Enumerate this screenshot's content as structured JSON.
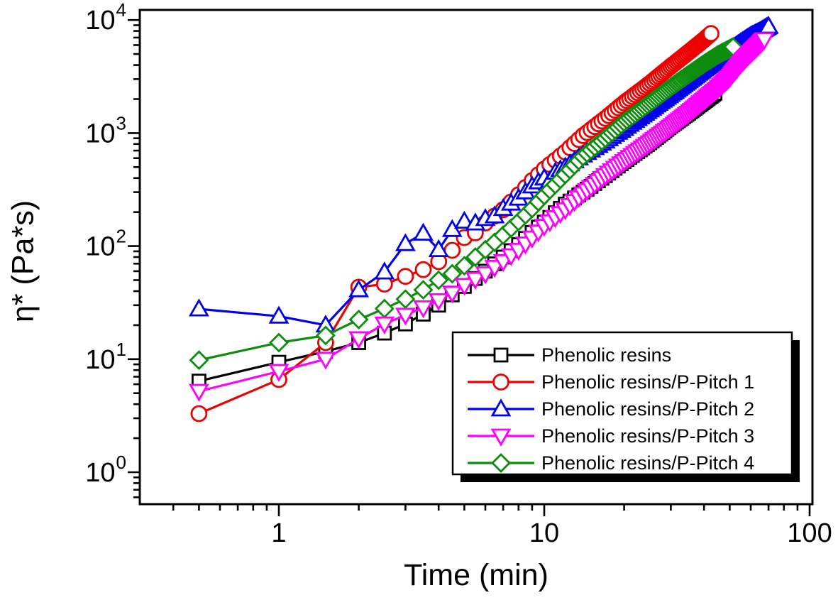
{
  "chart_data": {
    "type": "line",
    "title": "",
    "xlabel": "Time (min)",
    "ylabel": "η* (Pa*s)",
    "x_scale": "log",
    "y_scale": "log",
    "xlim": [
      0.3,
      103
    ],
    "ylim": [
      0.52,
      12300
    ],
    "grid": false,
    "x_ticks": [
      {
        "value": 1,
        "label": "1"
      },
      {
        "value": 10,
        "label": "10"
      },
      {
        "value": 100,
        "label": "100"
      }
    ],
    "y_ticks": [
      {
        "value": 1,
        "base": "10",
        "exp": "0"
      },
      {
        "value": 10,
        "base": "10",
        "exp": "1"
      },
      {
        "value": 100,
        "base": "10",
        "exp": "2"
      },
      {
        "value": 1000,
        "base": "10",
        "exp": "3"
      },
      {
        "value": 10000,
        "base": "10",
        "exp": "4"
      }
    ],
    "legend": {
      "position": "lower-right",
      "border": true,
      "shadow": true
    },
    "sample_dt": 0.5,
    "series": [
      {
        "name": "Phenolic resins",
        "color": "#000000",
        "marker": "square",
        "z": 0,
        "anchors": [
          [
            0.5,
            6.4
          ],
          [
            1,
            9.4
          ],
          [
            1.5,
            11.7
          ],
          [
            2,
            14
          ],
          [
            2.5,
            17
          ],
          [
            3,
            20.5
          ],
          [
            3.5,
            25
          ],
          [
            4,
            30
          ],
          [
            4.5,
            37
          ],
          [
            5,
            44
          ],
          [
            6,
            60
          ],
          [
            7,
            80
          ],
          [
            8,
            103
          ],
          [
            9,
            132
          ],
          [
            10,
            163
          ],
          [
            12,
            235
          ],
          [
            14,
            300
          ],
          [
            17,
            420
          ],
          [
            20,
            560
          ],
          [
            25,
            820
          ],
          [
            30,
            1150
          ],
          [
            35,
            1500
          ],
          [
            40,
            1900
          ],
          [
            44,
            2250
          ]
        ]
      },
      {
        "name": "Phenolic resins/P-Pitch 1",
        "color": "#ed0000",
        "marker": "circle",
        "z": 1,
        "anchors": [
          [
            0.5,
            3.3
          ],
          [
            1,
            6.6
          ],
          [
            1.5,
            14
          ],
          [
            1.9,
            43
          ],
          [
            2.4,
            44.5
          ],
          [
            3,
            54
          ],
          [
            3.5,
            62
          ],
          [
            4,
            73
          ],
          [
            4.7,
            100
          ],
          [
            5,
            119
          ],
          [
            5.5,
            131
          ],
          [
            6,
            160
          ],
          [
            7,
            210
          ],
          [
            8,
            285
          ],
          [
            9,
            380
          ],
          [
            10,
            480
          ],
          [
            12,
            680
          ],
          [
            14,
            950
          ],
          [
            17,
            1350
          ],
          [
            20,
            1850
          ],
          [
            25,
            2750
          ],
          [
            30,
            3900
          ],
          [
            35,
            5200
          ],
          [
            40,
            6700
          ],
          [
            42.5,
            7600
          ]
        ]
      },
      {
        "name": "Phenolic resins/P-Pitch 2",
        "color": "#0000ee",
        "marker": "triangle-up",
        "z": 2,
        "anchors": [
          [
            0.5,
            27.8
          ],
          [
            1,
            24
          ],
          [
            1.5,
            20
          ],
          [
            2,
            41
          ],
          [
            2.5,
            59
          ],
          [
            3,
            105
          ],
          [
            3.5,
            130
          ],
          [
            4,
            93
          ],
          [
            4.5,
            140
          ],
          [
            5,
            166
          ],
          [
            5.5,
            160
          ],
          [
            6,
            175
          ],
          [
            6.5,
            185
          ],
          [
            7,
            215
          ],
          [
            8,
            265
          ],
          [
            9,
            340
          ],
          [
            10,
            400
          ],
          [
            10.5,
            380
          ],
          [
            11,
            450
          ],
          [
            12,
            500
          ],
          [
            14,
            640
          ],
          [
            17,
            850
          ],
          [
            20,
            1100
          ],
          [
            25,
            1600
          ],
          [
            30,
            2200
          ],
          [
            35,
            2900
          ],
          [
            40,
            3700
          ],
          [
            45,
            4500
          ],
          [
            50,
            5400
          ],
          [
            55,
            6300
          ],
          [
            60,
            7200
          ],
          [
            65,
            7900
          ],
          [
            70,
            8800
          ]
        ]
      },
      {
        "name": "Phenolic resins/P-Pitch 3",
        "color": "#ff00ff",
        "marker": "triangle-down",
        "z": 4,
        "anchors": [
          [
            0.5,
            5.2
          ],
          [
            1,
            7.8
          ],
          [
            1.5,
            10
          ],
          [
            2,
            15.2
          ],
          [
            2.5,
            20.5
          ],
          [
            3,
            24.5
          ],
          [
            3.5,
            28.5
          ],
          [
            4,
            33
          ],
          [
            4.5,
            38.5
          ],
          [
            5,
            45
          ],
          [
            5.5,
            51
          ],
          [
            6,
            57
          ],
          [
            6.5,
            65
          ],
          [
            7,
            73
          ],
          [
            8,
            92
          ],
          [
            9,
            118
          ],
          [
            10,
            150
          ],
          [
            12,
            210
          ],
          [
            14,
            290
          ],
          [
            17,
            420
          ],
          [
            20,
            560
          ],
          [
            25,
            820
          ],
          [
            30,
            1130
          ],
          [
            35,
            1500
          ],
          [
            40,
            1950
          ],
          [
            45,
            2450
          ],
          [
            50,
            3100
          ],
          [
            55,
            4100
          ],
          [
            60,
            5100
          ],
          [
            64,
            5900
          ],
          [
            67.5,
            6700
          ]
        ]
      },
      {
        "name": "Phenolic resins/P-Pitch 4",
        "color": "#0e8c0e",
        "marker": "diamond",
        "z": 3,
        "anchors": [
          [
            0.5,
            9.8
          ],
          [
            1,
            14
          ],
          [
            1.5,
            16.2
          ],
          [
            2,
            22.4
          ],
          [
            2.5,
            28
          ],
          [
            3,
            34
          ],
          [
            3.5,
            41
          ],
          [
            4,
            50
          ],
          [
            4.5,
            57
          ],
          [
            5,
            67
          ],
          [
            5.5,
            80
          ],
          [
            6,
            93
          ],
          [
            6.5,
            108
          ],
          [
            7,
            125
          ],
          [
            8,
            165
          ],
          [
            9,
            215
          ],
          [
            10,
            280
          ],
          [
            11,
            350
          ],
          [
            12,
            430
          ],
          [
            14,
            620
          ],
          [
            17,
            900
          ],
          [
            20,
            1250
          ],
          [
            25,
            1850
          ],
          [
            30,
            2550
          ],
          [
            35,
            3300
          ],
          [
            40,
            4100
          ],
          [
            45,
            4900
          ],
          [
            51.5,
            5780
          ]
        ]
      }
    ]
  }
}
